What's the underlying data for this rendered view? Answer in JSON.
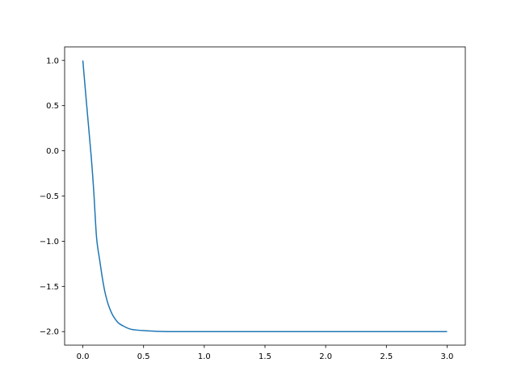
{
  "chart_data": {
    "type": "line",
    "title": "",
    "xlabel": "",
    "ylabel": "",
    "xlim": [
      -0.15,
      3.15
    ],
    "ylim": [
      -2.15,
      1.15
    ],
    "grid": false,
    "x_ticks": [
      "0.0",
      "0.5",
      "1.0",
      "1.5",
      "2.0",
      "2.5",
      "3.0"
    ],
    "x_tick_values": [
      0,
      0.5,
      1,
      1.5,
      2,
      2.5,
      3
    ],
    "y_ticks": [
      "−2.0",
      "−1.5",
      "−1.0",
      "−0.5",
      "0.0",
      "0.5",
      "1.0"
    ],
    "y_tick_values": [
      -2,
      -1.5,
      -1,
      -0.5,
      0,
      0.5,
      1
    ],
    "series": [
      {
        "color": "#1f77b4",
        "x": [
          0,
          0.03,
          0.069,
          0.09,
          0.113,
          0.14,
          0.16,
          0.18,
          0.2,
          0.22,
          0.247,
          0.29,
          0.336,
          0.4,
          0.513,
          0.7,
          1.0,
          3.0
        ],
        "y": [
          1.0,
          0.53,
          -0.065,
          -0.45,
          -0.958,
          -1.22,
          -1.4,
          -1.55,
          -1.66,
          -1.74,
          -1.82,
          -1.9,
          -1.94,
          -1.975,
          -1.99,
          -2.0,
          -2.0,
          -2.0
        ]
      }
    ]
  }
}
